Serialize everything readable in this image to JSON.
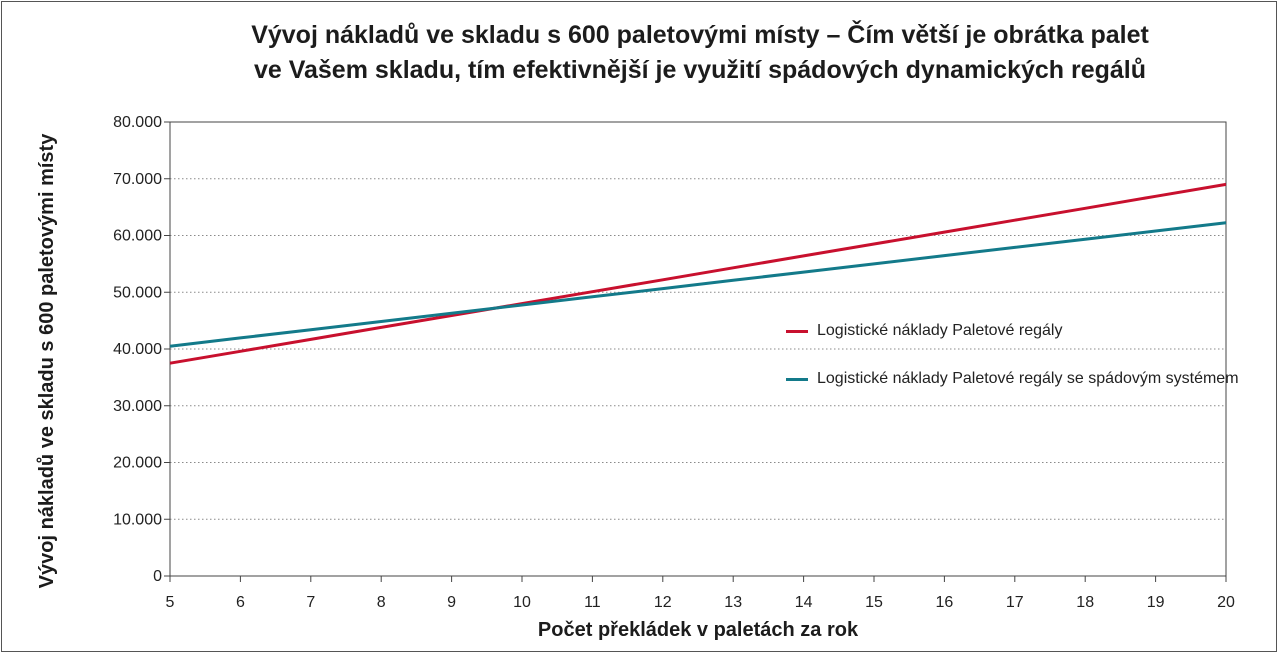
{
  "chart_data": {
    "type": "line",
    "title_lines": [
      "Vývoj nákladů ve skladu s 600 paletovými místy – Čím větší je obrátka palet",
      "ve Vašem skladu, tím efektivnější je využití spádových dynamických regálů"
    ],
    "ylabel": "Vývoj nákladů ve skladu s 600 paletovými místy",
    "xlabel": "Počet překládek v paletách za rok",
    "x": [
      5,
      6,
      7,
      8,
      9,
      10,
      11,
      12,
      13,
      14,
      15,
      16,
      17,
      18,
      19,
      20
    ],
    "x_tick_labels": [
      "5",
      "6",
      "7",
      "8",
      "9",
      "10",
      "11",
      "12",
      "13",
      "14",
      "15",
      "16",
      "17",
      "18",
      "19",
      "20"
    ],
    "xlim": [
      5,
      20
    ],
    "ylim": [
      0,
      80000
    ],
    "y_ticks": [
      0,
      10000,
      20000,
      30000,
      40000,
      50000,
      60000,
      70000,
      80000
    ],
    "y_tick_labels": [
      "0",
      "10.000",
      "20.000",
      "30.000",
      "40.000",
      "50.000",
      "60.000",
      "70.000",
      "80.000"
    ],
    "grid": "horizontal-dotted",
    "legend_position": "right",
    "series": [
      {
        "name": "Logistické náklady Paletové regály",
        "color": "#c8102e",
        "values": [
          37500,
          39600,
          41700,
          43800,
          45900,
          48000,
          50100,
          52200,
          54300,
          56400,
          58500,
          60600,
          62700,
          64800,
          66900,
          69000
        ]
      },
      {
        "name": "Logistické náklady Paletové regály se spádovým systémem",
        "color": "#137a8a",
        "values": [
          40500,
          41950,
          43400,
          44850,
          46300,
          47750,
          49200,
          50650,
          52100,
          53550,
          55000,
          56450,
          57900,
          59350,
          60800,
          62250
        ]
      }
    ]
  }
}
